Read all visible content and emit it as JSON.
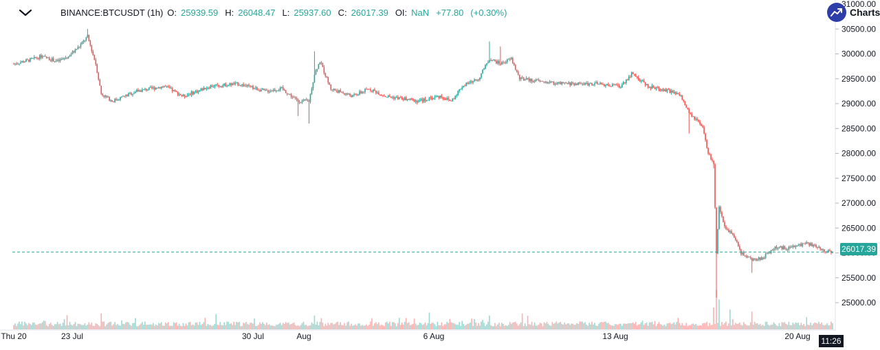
{
  "header": {
    "symbol": "BINANCE:BTCUSDT (1h)",
    "o_label": "O:",
    "o_value": "25939.59",
    "h_label": "H:",
    "h_value": "26048.47",
    "l_label": "L:",
    "l_value": "25937.60",
    "c_label": "C:",
    "c_value": "26017.39",
    "oi_label": "OI:",
    "oi_value": "NaN",
    "change": "+77.80",
    "change_pct": "(+0.30%)"
  },
  "brand": {
    "text": "Charts"
  },
  "last_price_tag": "26017.39",
  "crosshair_time": "11:26",
  "colors": {
    "up": "#26a69a",
    "down": "#ef5350",
    "last_line": "#26a69a",
    "brand": "#2e3ea8"
  },
  "icons": {
    "collapse": "chevron-down-icon",
    "brand": "trend-up-icon"
  },
  "chart_data": {
    "type": "candlestick",
    "y_ticks": [
      "25000.00",
      "25500.00",
      "26000.00",
      "26500.00",
      "27000.00",
      "27500.00",
      "28000.00",
      "28500.00",
      "29000.00",
      "29500.00",
      "30000.00",
      "30500.00",
      "31000.00"
    ],
    "x_ticks": [
      "Thu 20",
      "23 Jul",
      "30 Jul",
      "Aug",
      "6 Aug",
      "13 Aug",
      "20 Aug"
    ],
    "ylim": [
      24600,
      31000
    ],
    "last_price": 26017.39,
    "series_path": [
      {
        "t": 0,
        "p": 29800
      },
      {
        "t": 6,
        "p": 29880
      },
      {
        "t": 10,
        "p": 29950
      },
      {
        "t": 16,
        "p": 29850
      },
      {
        "t": 20,
        "p": 29950
      },
      {
        "t": 24,
        "p": 30150
      },
      {
        "t": 27,
        "p": 30350
      },
      {
        "t": 30,
        "p": 29800
      },
      {
        "t": 32,
        "p": 29200
      },
      {
        "t": 36,
        "p": 29050
      },
      {
        "t": 45,
        "p": 29250
      },
      {
        "t": 55,
        "p": 29350
      },
      {
        "t": 62,
        "p": 29150
      },
      {
        "t": 72,
        "p": 29350
      },
      {
        "t": 82,
        "p": 29400
      },
      {
        "t": 92,
        "p": 29250
      },
      {
        "t": 98,
        "p": 29300
      },
      {
        "t": 104,
        "p": 29050
      },
      {
        "t": 108,
        "p": 29050
      },
      {
        "t": 110,
        "p": 29600
      },
      {
        "t": 112,
        "p": 29850
      },
      {
        "t": 116,
        "p": 29300
      },
      {
        "t": 124,
        "p": 29150
      },
      {
        "t": 130,
        "p": 29300
      },
      {
        "t": 136,
        "p": 29150
      },
      {
        "t": 148,
        "p": 29050
      },
      {
        "t": 156,
        "p": 29150
      },
      {
        "t": 160,
        "p": 29050
      },
      {
        "t": 164,
        "p": 29350
      },
      {
        "t": 170,
        "p": 29500
      },
      {
        "t": 174,
        "p": 29900
      },
      {
        "t": 178,
        "p": 29800
      },
      {
        "t": 182,
        "p": 29900
      },
      {
        "t": 185,
        "p": 29500
      },
      {
        "t": 192,
        "p": 29450
      },
      {
        "t": 200,
        "p": 29400
      },
      {
        "t": 212,
        "p": 29400
      },
      {
        "t": 222,
        "p": 29350
      },
      {
        "t": 226,
        "p": 29600
      },
      {
        "t": 232,
        "p": 29350
      },
      {
        "t": 240,
        "p": 29250
      },
      {
        "t": 244,
        "p": 29150
      },
      {
        "t": 247,
        "p": 28800
      },
      {
        "t": 250,
        "p": 28650
      },
      {
        "t": 252,
        "p": 28500
      },
      {
        "t": 254,
        "p": 28000
      },
      {
        "t": 256,
        "p": 27800
      },
      {
        "t": 257,
        "p": 26000
      },
      {
        "t": 258,
        "p": 26900
      },
      {
        "t": 260,
        "p": 26500
      },
      {
        "t": 263,
        "p": 26400
      },
      {
        "t": 266,
        "p": 26000
      },
      {
        "t": 270,
        "p": 25850
      },
      {
        "t": 274,
        "p": 25900
      },
      {
        "t": 278,
        "p": 26100
      },
      {
        "t": 284,
        "p": 26100
      },
      {
        "t": 290,
        "p": 26200
      },
      {
        "t": 296,
        "p": 26050
      },
      {
        "t": 300,
        "p": 26020
      }
    ],
    "spikes": [
      {
        "t": 257,
        "low": 25100
      },
      {
        "t": 256,
        "low": 27700
      },
      {
        "t": 270,
        "low": 25600
      },
      {
        "t": 247,
        "low": 28400
      },
      {
        "t": 27,
        "high": 30500
      },
      {
        "t": 110,
        "high": 30050
      },
      {
        "t": 174,
        "high": 30250
      },
      {
        "t": 178,
        "high": 30150
      },
      {
        "t": 108,
        "low": 28600
      },
      {
        "t": 104,
        "low": 28750
      }
    ],
    "volume_spikes": [
      {
        "t": 257,
        "v": 1.0
      },
      {
        "t": 258,
        "v": 0.75
      },
      {
        "t": 262,
        "v": 0.5
      },
      {
        "t": 256,
        "v": 0.55
      },
      {
        "t": 270,
        "v": 0.45
      },
      {
        "t": 110,
        "v": 0.35
      },
      {
        "t": 174,
        "v": 0.35
      },
      {
        "t": 32,
        "v": 0.4
      },
      {
        "t": 186,
        "v": 0.4
      }
    ]
  }
}
